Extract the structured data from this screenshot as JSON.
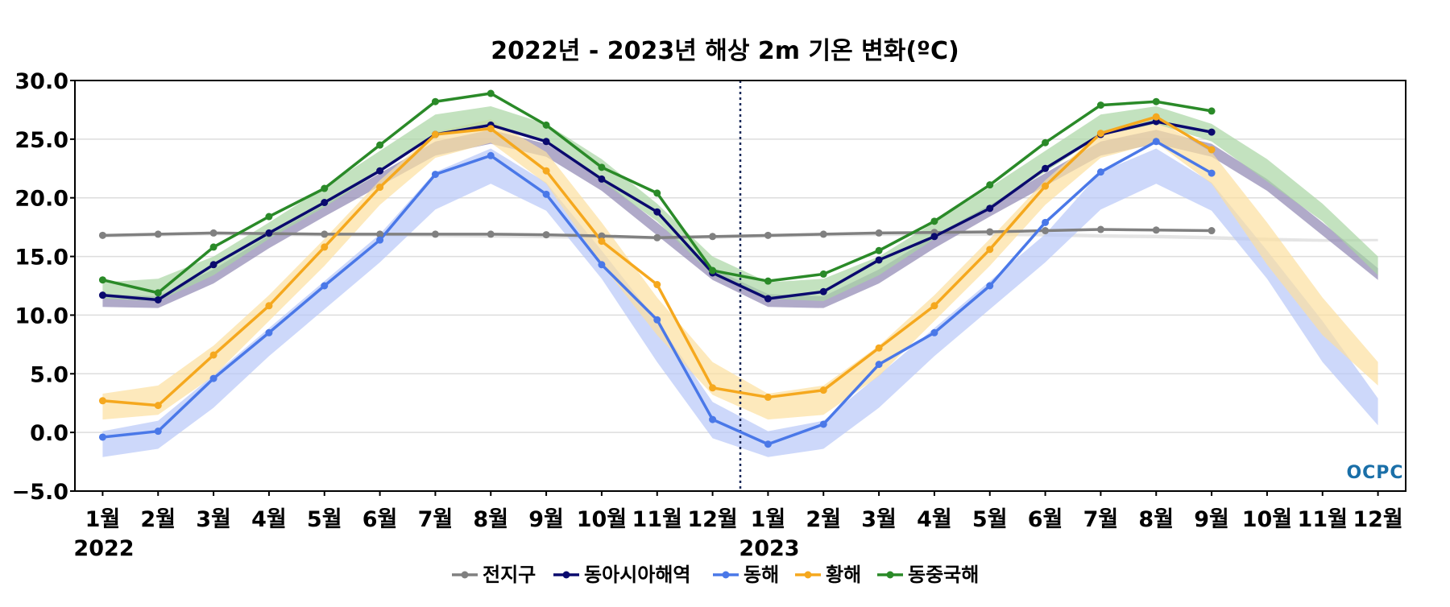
{
  "chart_data": {
    "type": "line",
    "title": "2022년 - 2023년 해상 2m 기온 변화(ºC)",
    "xlabel": "",
    "ylabel": "",
    "ylim": [
      -5,
      30
    ],
    "yticks": [
      "30.0",
      "25.0",
      "20.0",
      "15.0",
      "10.0",
      "5.0",
      "0.0",
      "−5.0"
    ],
    "ytick_values": [
      30,
      25,
      20,
      15,
      10,
      5,
      0,
      -5
    ],
    "categories": [
      "1월",
      "2월",
      "3월",
      "4월",
      "5월",
      "6월",
      "7월",
      "8월",
      "9월",
      "10월",
      "11월",
      "12월",
      "1월",
      "2월",
      "3월",
      "4월",
      "5월",
      "6월",
      "7월",
      "8월",
      "9월",
      "10월",
      "11월",
      "12월"
    ],
    "year_labels": [
      {
        "label": "2022",
        "index": 0
      },
      {
        "label": "2023",
        "index": 12
      }
    ],
    "divider_after_index": 11,
    "grid": true,
    "legend_position": "bottom-center",
    "series": [
      {
        "name": "전지구",
        "color": "#808080",
        "band_color": "#d9d9d9",
        "values": [
          16.8,
          16.9,
          17.0,
          16.95,
          16.9,
          16.9,
          16.9,
          16.9,
          16.85,
          16.75,
          16.6,
          16.7,
          16.8,
          16.9,
          17.0,
          17.05,
          17.1,
          17.2,
          17.3,
          17.25,
          17.2,
          null,
          null,
          null
        ],
        "band_low": [
          16.6,
          16.7,
          16.8,
          16.75,
          16.7,
          16.7,
          16.65,
          16.6,
          16.55,
          16.5,
          16.45,
          16.5,
          16.6,
          16.7,
          16.75,
          16.75,
          16.75,
          16.7,
          16.6,
          16.55,
          16.45,
          16.3,
          16.25,
          16.3
        ],
        "band_high": [
          16.9,
          17.0,
          17.1,
          17.05,
          17.0,
          17.0,
          16.95,
          16.9,
          16.85,
          16.8,
          16.7,
          16.75,
          16.9,
          17.0,
          17.05,
          17.05,
          17.05,
          17.0,
          16.9,
          16.85,
          16.75,
          16.6,
          16.5,
          16.5
        ]
      },
      {
        "name": "동아시아해역",
        "color": "#0a0a6e",
        "band_color": "#8f86b2",
        "values": [
          11.7,
          11.3,
          14.3,
          17.0,
          19.6,
          22.3,
          25.4,
          26.2,
          24.8,
          21.6,
          18.8,
          13.6,
          11.4,
          12.0,
          14.7,
          16.7,
          19.1,
          22.5,
          25.4,
          26.5,
          25.6,
          null,
          null,
          null
        ],
        "band_low": [
          10.7,
          10.6,
          12.7,
          15.7,
          18.4,
          21.0,
          23.6,
          24.6,
          23.5,
          20.6,
          16.8,
          13.0,
          10.7,
          10.6,
          12.7,
          15.7,
          18.4,
          21.0,
          23.6,
          24.6,
          23.5,
          20.6,
          16.8,
          13.0
        ],
        "band_high": [
          11.8,
          11.6,
          13.9,
          16.8,
          19.4,
          22.1,
          24.8,
          25.8,
          24.6,
          21.6,
          17.9,
          14.0,
          11.8,
          11.6,
          13.9,
          16.8,
          19.4,
          22.1,
          24.8,
          25.8,
          24.6,
          21.6,
          17.9,
          14.0
        ]
      },
      {
        "name": "동해",
        "color": "#4a78e8",
        "band_color": "#b8c8f8",
        "values": [
          -0.4,
          0.1,
          4.6,
          8.5,
          12.5,
          16.4,
          22.0,
          23.6,
          20.3,
          14.3,
          9.6,
          1.1,
          -1.0,
          0.7,
          5.8,
          8.5,
          12.5,
          17.9,
          22.2,
          24.8,
          22.1,
          null,
          null,
          null
        ],
        "band_low": [
          -2.1,
          -1.4,
          2.1,
          6.5,
          10.5,
          14.5,
          19.0,
          21.2,
          18.9,
          13.1,
          6.0,
          -0.5,
          -2.1,
          -1.4,
          2.1,
          6.5,
          10.5,
          14.5,
          19.0,
          21.2,
          18.9,
          13.1,
          6.0,
          0.6
        ],
        "band_high": [
          0.1,
          1.0,
          4.9,
          8.9,
          12.9,
          16.9,
          22.2,
          24.2,
          21.3,
          15.5,
          9.5,
          2.6,
          0.1,
          1.0,
          4.9,
          8.9,
          12.9,
          16.9,
          22.2,
          24.2,
          21.3,
          15.5,
          9.5,
          2.9
        ]
      },
      {
        "name": "황해",
        "color": "#f5a81e",
        "band_color": "#fcdfa0",
        "values": [
          2.7,
          2.3,
          6.6,
          10.8,
          15.8,
          20.9,
          25.4,
          25.9,
          22.3,
          16.3,
          12.6,
          3.8,
          3.0,
          3.6,
          7.2,
          10.8,
          15.6,
          21.0,
          25.5,
          26.9,
          24.1,
          null,
          null,
          null
        ],
        "band_low": [
          1.1,
          1.5,
          4.8,
          9.5,
          14.2,
          19.4,
          23.4,
          24.7,
          21.2,
          14.3,
          8.3,
          3.2,
          1.1,
          1.5,
          4.8,
          9.5,
          14.2,
          19.4,
          23.4,
          24.7,
          21.2,
          14.3,
          8.3,
          4.0
        ],
        "band_high": [
          3.3,
          4.0,
          7.4,
          11.7,
          16.5,
          21.5,
          25.6,
          26.7,
          23.9,
          17.9,
          11.5,
          6.0,
          3.3,
          4.0,
          7.4,
          11.7,
          16.5,
          21.5,
          25.6,
          26.7,
          23.9,
          17.9,
          11.5,
          6.0
        ]
      },
      {
        "name": "동중국해",
        "color": "#2a8a28",
        "band_color": "#a9d6a4",
        "values": [
          13.0,
          11.9,
          15.8,
          18.4,
          20.8,
          24.5,
          28.2,
          28.9,
          26.2,
          22.6,
          20.4,
          13.8,
          12.9,
          13.5,
          15.5,
          18.0,
          21.1,
          24.7,
          27.9,
          28.2,
          27.4,
          null,
          null,
          null
        ],
        "band_low": [
          11.4,
          11.2,
          13.4,
          16.5,
          19.2,
          22.2,
          25.3,
          26.3,
          24.8,
          21.4,
          18.0,
          13.4,
          11.4,
          11.2,
          13.4,
          16.5,
          19.2,
          22.2,
          25.3,
          26.3,
          24.8,
          21.4,
          18.0,
          13.4
        ],
        "band_high": [
          12.8,
          13.1,
          15.0,
          17.9,
          20.9,
          24.0,
          27.1,
          27.8,
          26.3,
          23.3,
          19.5,
          15.0,
          12.8,
          13.1,
          15.0,
          17.9,
          20.9,
          24.0,
          27.1,
          27.8,
          26.3,
          23.3,
          19.5,
          15.0
        ]
      }
    ]
  },
  "logo": "OCPC"
}
